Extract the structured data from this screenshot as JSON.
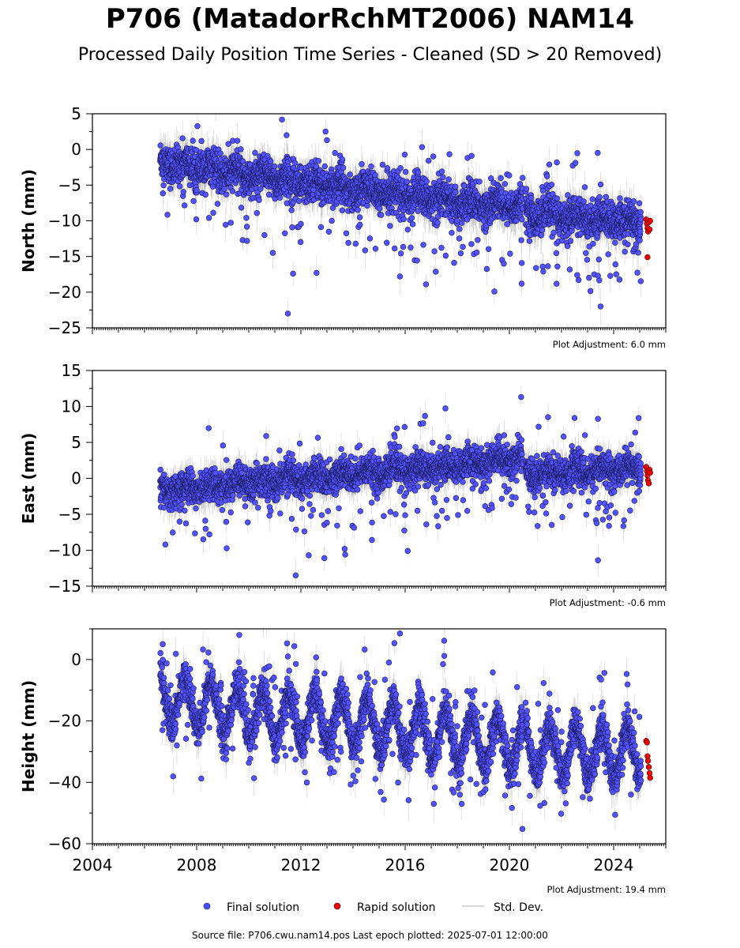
{
  "title": "P706 (MatadorRchMT2006) NAM14",
  "subtitle": "Processed Daily Position Time Series - Cleaned (SD > 20 Removed)",
  "source_text": "Source file: P706.cwu.nam14.pos  Last epoch plotted: 2025-07-01 12:00:00",
  "legend": [
    {
      "label": "Final solution",
      "marker": "circle",
      "color": "#4a4aff"
    },
    {
      "label": "Rapid solution",
      "marker": "circle",
      "color": "#ee0000"
    },
    {
      "label": "Std. Dev.",
      "marker": "line",
      "color": "#cccccc"
    }
  ],
  "colors": {
    "final": "#5252ff",
    "final_edge": "#1a1a55",
    "rapid": "#ee0000",
    "stddev": "#9a9a9a"
  },
  "chart_data": [
    {
      "type": "scatter",
      "ylabel": "North (mm)",
      "ylim": [
        -25,
        5
      ],
      "yticks": [
        5,
        0,
        -5,
        -10,
        -15,
        -20,
        -25
      ],
      "xlim": [
        2004,
        2026
      ],
      "adjustment": "Plot Adjustment: 6.0 mm",
      "grid": false,
      "series_final": {
        "name": "Final solution",
        "x_start": 2006.6,
        "x_end": 2025.05,
        "trend": [
          [
            2006.6,
            -1.8
          ],
          [
            2010.0,
            -3.6
          ],
          [
            2014.0,
            -5.4
          ],
          [
            2018.0,
            -7.4
          ],
          [
            2020.6,
            -8.0
          ],
          [
            2020.7,
            -9.0
          ],
          [
            2025.05,
            -10.2
          ]
        ],
        "scatter_sd": 1.3,
        "seasonal_amp": 0.6,
        "outlier_dir": -1,
        "outliers": [
          [
            2011.5,
            -23.0
          ],
          [
            2011.45,
            2.0
          ],
          [
            2013.0,
            1.3
          ],
          [
            2018.55,
            -0.9
          ],
          [
            2023.5,
            -22.0
          ],
          [
            2016.8,
            -18.9
          ],
          [
            2015.8,
            -17.8
          ],
          [
            2012.6,
            -17.3
          ],
          [
            2011.7,
            -17.4
          ],
          [
            2022.6,
            -17.6
          ],
          [
            2023.4,
            -17.7
          ],
          [
            2024.1,
            -17.5
          ],
          [
            2021.3,
            -17.1
          ]
        ]
      },
      "series_rapid": {
        "name": "Rapid solution",
        "x_start": 2025.2,
        "x_end": 2025.45,
        "points": [
          [
            2025.25,
            -9.8
          ],
          [
            2025.28,
            -10.4
          ],
          [
            2025.3,
            -11.0
          ],
          [
            2025.32,
            -11.5
          ],
          [
            2025.35,
            -10.2
          ],
          [
            2025.38,
            -11.2
          ],
          [
            2025.4,
            -10.0
          ],
          [
            2025.3,
            -15.1
          ]
        ]
      }
    },
    {
      "type": "scatter",
      "ylabel": "East (mm)",
      "ylim": [
        -15,
        15
      ],
      "yticks": [
        15,
        10,
        5,
        0,
        -5,
        -10,
        -15
      ],
      "xlim": [
        2004,
        2026
      ],
      "adjustment": "Plot Adjustment: -0.6 mm",
      "grid": false,
      "series_final": {
        "name": "Final solution",
        "x_start": 2006.6,
        "x_end": 2025.05,
        "trend": [
          [
            2006.6,
            -1.8
          ],
          [
            2010.0,
            -0.6
          ],
          [
            2014.0,
            0.6
          ],
          [
            2018.0,
            1.8
          ],
          [
            2020.5,
            3.0
          ],
          [
            2020.65,
            0.6
          ],
          [
            2025.05,
            1.4
          ]
        ],
        "scatter_sd": 1.1,
        "seasonal_amp": 0.5,
        "outlier_dir": -1,
        "outliers": [
          [
            2020.45,
            11.3
          ],
          [
            2022.5,
            8.4
          ],
          [
            2011.8,
            -13.5
          ],
          [
            2023.4,
            -11.4
          ],
          [
            2012.9,
            -11.1
          ],
          [
            2012.3,
            -10.7
          ],
          [
            2013.7,
            -10.6
          ],
          [
            2016.1,
            -10.1
          ],
          [
            2006.8,
            -9.2
          ],
          [
            2019.8,
            6.0
          ],
          [
            2022.9,
            6.0
          ]
        ]
      },
      "series_rapid": {
        "name": "Rapid solution",
        "x_start": 2025.2,
        "x_end": 2025.45,
        "points": [
          [
            2025.25,
            1.6
          ],
          [
            2025.28,
            1.0
          ],
          [
            2025.3,
            0.4
          ],
          [
            2025.32,
            -0.3
          ],
          [
            2025.35,
            -0.7
          ],
          [
            2025.38,
            1.2
          ],
          [
            2025.4,
            0.8
          ]
        ]
      }
    },
    {
      "type": "scatter",
      "ylabel": "Height (mm)",
      "ylim": [
        -60,
        10
      ],
      "yticks": [
        0,
        -20,
        -40,
        -60
      ],
      "xlim": [
        2004,
        2026
      ],
      "xticks": [
        2004,
        2008,
        2012,
        2016,
        2020,
        2024
      ],
      "adjustment": "Plot Adjustment: 19.4 mm",
      "grid": false,
      "series_final": {
        "name": "Final solution",
        "x_start": 2006.6,
        "x_end": 2025.05,
        "trend": [
          [
            2006.6,
            -12.0
          ],
          [
            2010.0,
            -18.0
          ],
          [
            2014.0,
            -20.0
          ],
          [
            2018.0,
            -26.0
          ],
          [
            2022.0,
            -30.0
          ],
          [
            2025.05,
            -31.0
          ]
        ],
        "scatter_sd": 3.0,
        "seasonal_amp": 8.0,
        "outlier_dir": 0,
        "outliers": [
          [
            2015.8,
            8.5
          ],
          [
            2020.5,
            -55.2
          ],
          [
            2017.1,
            -47.0
          ],
          [
            2018.1,
            -44.0
          ],
          [
            2006.7,
            5.0
          ],
          [
            2011.5,
            1.0
          ]
        ]
      },
      "series_rapid": {
        "name": "Rapid solution",
        "x_start": 2025.2,
        "x_end": 2025.45,
        "points": [
          [
            2025.25,
            -26.5
          ],
          [
            2025.28,
            -27.0
          ],
          [
            2025.3,
            -31.5
          ],
          [
            2025.32,
            -33.0
          ],
          [
            2025.35,
            -35.0
          ],
          [
            2025.38,
            -37.0
          ],
          [
            2025.4,
            -38.5
          ]
        ]
      }
    }
  ]
}
